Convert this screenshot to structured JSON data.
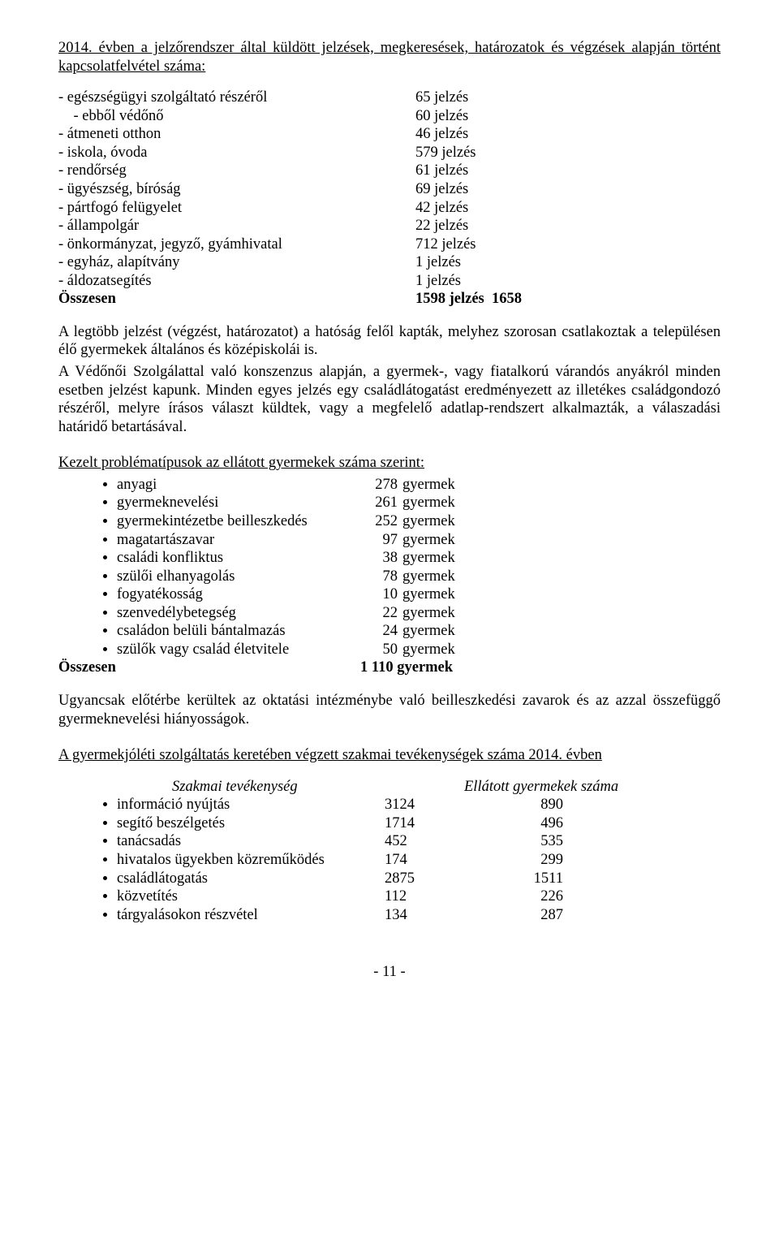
{
  "intro": "2014. évben a jelzőrendszer által küldött jelzések, megkeresések, határozatok és végzések alapján történt kapcsolatfelvétel száma:",
  "jelzes": {
    "rows": [
      {
        "label": "- egészségügyi szolgáltató részéről",
        "value": "65 jelzés"
      },
      {
        "label": "    - ebből védőnő",
        "value": "60 jelzés"
      },
      {
        "label": "- átmeneti otthon",
        "value": "46 jelzés"
      },
      {
        "label": "- iskola, óvoda",
        "value": "579 jelzés"
      },
      {
        "label": "- rendőrség",
        "value": "61 jelzés"
      },
      {
        "label": "- ügyészség, bíróság",
        "value": "69 jelzés"
      },
      {
        "label": "- pártfogó felügyelet",
        "value": "42 jelzés"
      },
      {
        "label": "- állampolgár",
        "value": "22 jelzés"
      },
      {
        "label": "- önkormányzat, jegyző, gyámhivatal",
        "value": "712 jelzés"
      },
      {
        "label": "- egyház, alapítvány",
        "value": "1 jelzés"
      },
      {
        "label": "- áldozatsegítés",
        "value": "1 jelzés"
      }
    ],
    "totalLabel": "Összesen",
    "totalValue": "1598 jelzés  1658"
  },
  "para1": "A legtöbb jelzést (végzést, határozatot) a hatóság felől kapták, melyhez szorosan csatlakoztak a településen élő gyermekek általános és középiskolái is.",
  "para2": "A Védőnői Szolgálattal való konszenzus alapján, a gyermek-, vagy fiatalkorú várandós anyákról minden esetben jelzést kapunk. Minden egyes jelzés egy családlátogatást eredményezett az illetékes családgondozó részéről, melyre írásos választ küldtek, vagy a megfelelő adatlap-rendszert alkalmazták, a válaszadási határidő betartásával.",
  "problemak": {
    "heading": "Kezelt problématípusok az ellátott gyermekek száma szerint:",
    "rows": [
      {
        "label": "anyagi",
        "n": "278",
        "unit": "gyermek"
      },
      {
        "label": "gyermeknevelési",
        "n": "261",
        "unit": "gyermek"
      },
      {
        "label": "gyermekintézetbe beilleszkedés",
        "n": "252",
        "unit": "gyermek"
      },
      {
        "label": "magatartászavar",
        "n": "97",
        "unit": "gyermek"
      },
      {
        "label": "családi konfliktus",
        "n": "38",
        "unit": "gyermek"
      },
      {
        "label": "szülői elhanyagolás",
        "n": "78",
        "unit": "gyermek"
      },
      {
        "label": "fogyatékosság",
        "n": "10",
        "unit": "gyermek"
      },
      {
        "label": "szenvedélybetegség",
        "n": "22",
        "unit": "gyermek"
      },
      {
        "label": "családon belüli bántalmazás",
        "n": "24",
        "unit": "gyermek"
      },
      {
        "label": "szülők vagy család életvitele",
        "n": "50",
        "unit": "gyermek"
      }
    ],
    "totalLabel": "Összesen",
    "totalValue": "1 110 gyermek"
  },
  "para3": "Ugyancsak előtérbe kerültek az oktatási intézménybe való beilleszkedési zavarok és az azzal összefüggő gyermeknevelési hiányosságok.",
  "szakmai": {
    "heading": "A gyermekjóléti szolgáltatás keretében végzett szakmai tevékenységek száma 2014. évben",
    "col1": "Szakmai tevékenység",
    "col2": "Ellátott gyermekek száma",
    "rows": [
      {
        "label": "információ nyújtás",
        "v1": "3124",
        "v2": "890"
      },
      {
        "label": "segítő beszélgetés",
        "v1": "1714",
        "v2": "496"
      },
      {
        "label": "tanácsadás",
        "v1": "  452",
        "v2": "535"
      },
      {
        "label": "hivatalos ügyekben közreműködés",
        "v1": "  174",
        "v2": "299"
      },
      {
        "label": "családlátogatás",
        "v1": "2875",
        "v2": "1511"
      },
      {
        "label": "közvetítés",
        "v1": "  112",
        "v2": "226"
      },
      {
        "label": "tárgyalásokon részvétel",
        "v1": "  134",
        "v2": "287"
      }
    ]
  },
  "pageNumber": "- 11 -"
}
